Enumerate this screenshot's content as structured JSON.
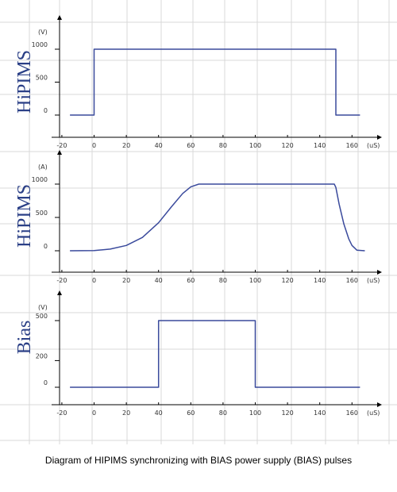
{
  "caption": "Diagram of HIPIMS synchronizing with BIAS power supply (BIAS) pulses",
  "colors": {
    "grid": "#d9d9d9",
    "axis": "#000000",
    "series": "#3a4a9c",
    "side_label": "#2a3f86"
  },
  "chart_data": [
    {
      "type": "line",
      "side_label": "HiPIMS",
      "y_unit": "(V)",
      "x_unit": "(uS)",
      "x_ticks": [
        -20,
        0,
        20,
        40,
        60,
        80,
        100,
        120,
        140,
        160
      ],
      "y_ticks": [
        0,
        500,
        1000
      ],
      "xlim": [
        -20,
        165
      ],
      "ylim": [
        0,
        1000
      ],
      "series": [
        {
          "x": [
            -15,
            0,
            0,
            150,
            150,
            165
          ],
          "y": [
            0,
            0,
            1000,
            1000,
            0,
            0
          ]
        }
      ]
    },
    {
      "type": "line",
      "side_label": "HiPIMS",
      "y_unit": "(A)",
      "x_unit": "(uS)",
      "x_ticks": [
        -20,
        0,
        20,
        40,
        60,
        80,
        100,
        120,
        140,
        160
      ],
      "y_ticks": [
        0,
        500,
        1000
      ],
      "xlim": [
        -20,
        170
      ],
      "ylim": [
        0,
        1000
      ],
      "series": [
        {
          "x": [
            -15,
            0,
            10,
            20,
            30,
            40,
            48,
            55,
            60,
            65,
            70,
            100,
            149,
            150,
            152,
            155,
            158,
            160,
            163,
            168
          ],
          "y": [
            0,
            3,
            25,
            80,
            200,
            420,
            660,
            860,
            960,
            1000,
            1000,
            1000,
            1000,
            950,
            700,
            400,
            180,
            80,
            10,
            0
          ]
        }
      ]
    },
    {
      "type": "line",
      "side_label": "Bias",
      "y_unit": "(V)",
      "x_unit": "(uS)",
      "x_ticks": [
        -20,
        0,
        20,
        40,
        60,
        80,
        100,
        120,
        140,
        160
      ],
      "y_ticks": [
        0,
        200,
        500
      ],
      "xlim": [
        -20,
        165
      ],
      "ylim": [
        0,
        500
      ],
      "series": [
        {
          "x": [
            -15,
            40,
            40,
            100,
            100,
            165
          ],
          "y": [
            0,
            0,
            500,
            500,
            0,
            0
          ]
        }
      ]
    }
  ]
}
